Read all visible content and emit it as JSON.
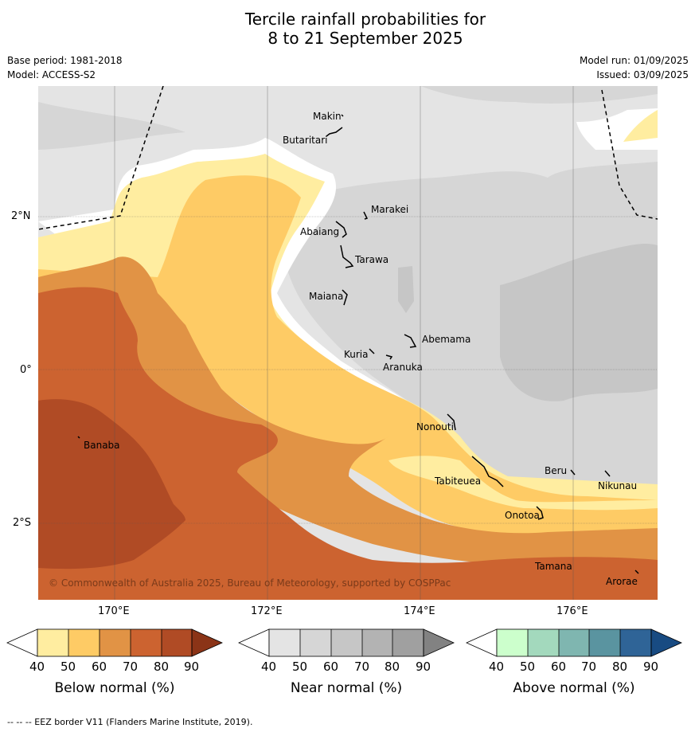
{
  "title": {
    "line1": "Tercile rainfall probabilities for",
    "line2": "8 to 21 September 2025"
  },
  "meta": {
    "base_period": "Base period: 1981-2018",
    "model": "Model: ACCESS-S2",
    "model_run": "Model run: 01/09/2025",
    "issued": "Issued: 03/09/2025"
  },
  "axes": {
    "lat_labels": [
      "2°N",
      "0°",
      "2°S"
    ],
    "lon_labels": [
      "170°E",
      "172°E",
      "174°E",
      "176°E"
    ]
  },
  "places": [
    {
      "name": "Makin"
    },
    {
      "name": "Butaritari"
    },
    {
      "name": "Marakei"
    },
    {
      "name": "Abaiang"
    },
    {
      "name": "Tarawa"
    },
    {
      "name": "Maiana"
    },
    {
      "name": "Abemama"
    },
    {
      "name": "Kuria"
    },
    {
      "name": "Aranuka"
    },
    {
      "name": "Nonouti"
    },
    {
      "name": "Banaba"
    },
    {
      "name": "Beru"
    },
    {
      "name": "Tabiteuea"
    },
    {
      "name": "Nikunau"
    },
    {
      "name": "Onotoa"
    },
    {
      "name": "Tamana"
    },
    {
      "name": "Arorae"
    }
  ],
  "copyright": "© Commonwealth of Australia 2025, Bureau of Meteorology, supported by COSPPac",
  "colorbars": [
    {
      "label": "Below normal (%)",
      "ticks": [
        "40",
        "50",
        "60",
        "70",
        "80",
        "90"
      ],
      "colors": [
        "#ffffff",
        "#ffeda0",
        "#fecb65",
        "#e19345",
        "#cc6330",
        "#b04b25",
        "#8b3417"
      ]
    },
    {
      "label": "Near normal (%)",
      "ticks": [
        "40",
        "50",
        "60",
        "70",
        "80",
        "90"
      ],
      "colors": [
        "#ffffff",
        "#e4e4e4",
        "#d6d6d6",
        "#c6c6c6",
        "#b3b3b3",
        "#a0a0a0",
        "#828282"
      ]
    },
    {
      "label": "Above normal (%)",
      "ticks": [
        "40",
        "50",
        "60",
        "70",
        "80",
        "90"
      ],
      "colors": [
        "#ffffff",
        "#ccffcc",
        "#a3d9bd",
        "#7fb6b0",
        "#5a94a0",
        "#2f6497",
        "#184b82"
      ]
    }
  ],
  "footer": "--  --  -- EEZ border V11 (Flanders Marine Institute, 2019)."
}
